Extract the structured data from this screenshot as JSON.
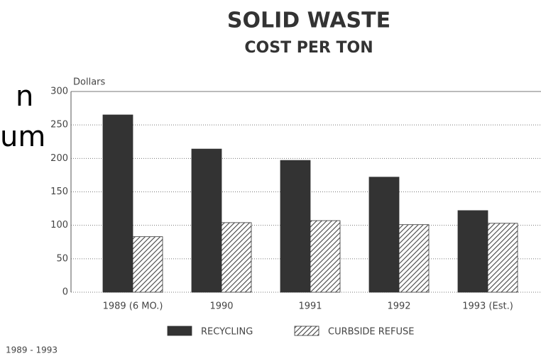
{
  "chart_data": {
    "type": "bar",
    "title": "SOLID  WASTE",
    "subtitle": "COST PER TON",
    "y_label": "Dollars",
    "footnote": "1989 - 1993",
    "annotations": [
      "n",
      "um"
    ],
    "categories": [
      "1989 (6 MO.)",
      "1990",
      "1991",
      "1992",
      "1993 (Est.)"
    ],
    "series": [
      {
        "name": "RECYCLING",
        "color": "#333333",
        "pattern": "solid",
        "values": [
          265,
          214,
          197,
          172,
          122
        ]
      },
      {
        "name": "CURBSIDE REFUSE",
        "color": "#444444",
        "pattern": "hatch",
        "values": [
          83,
          104,
          107,
          101,
          103
        ]
      }
    ],
    "ylim": [
      0,
      300
    ],
    "yticks": [
      0,
      50,
      100,
      150,
      200,
      250,
      300
    ],
    "grid": true
  }
}
